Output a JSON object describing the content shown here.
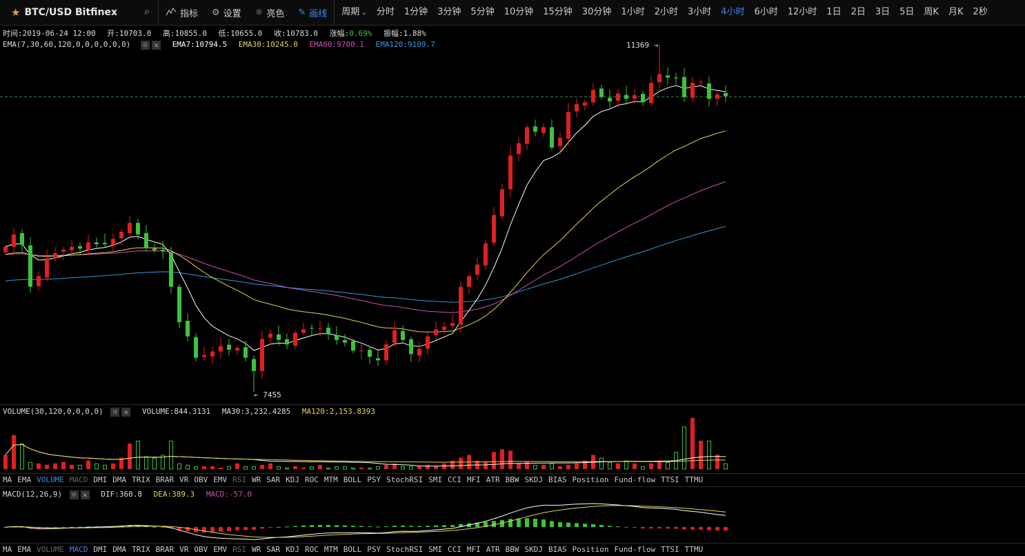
{
  "toolbar": {
    "symbol": "BTC/USD Bitfinex",
    "star_icon": "star-icon",
    "search_icon": "search-icon",
    "indicators": "指标",
    "settings": "设置",
    "brightness": "亮色",
    "draw": "画线",
    "period": "周期",
    "periods": [
      "分时",
      "1分钟",
      "3分钟",
      "5分钟",
      "10分钟",
      "15分钟",
      "30分钟",
      "1小时",
      "2小时",
      "3小时",
      "4小时",
      "6小时",
      "12小时",
      "1日",
      "2日",
      "3日",
      "5日",
      "周K",
      "月K",
      "2秒"
    ],
    "active_period": "4小时"
  },
  "ohlc": {
    "time_label": "时间:",
    "time": "2019-06-24 12:00",
    "open_label": "开:",
    "open": "10703.0",
    "high_label": "高:",
    "high": "10855.0",
    "low_label": "低:",
    "low": "10655.0",
    "close_label": "收:",
    "close": "10783.0",
    "change_label": "涨幅:",
    "change": "0.69%",
    "amp_label": "振幅:",
    "amp": "1.88%"
  },
  "ema_line": {
    "title": "EMA(7,30,60,120,0,0,0,0,0,0)",
    "ema7": "EMA7:10794.5",
    "ema30": "EMA30:10245.0",
    "ema60": "EMA60:9700.1",
    "ema120": "EMA120:9109.7"
  },
  "volume_line": {
    "title": "VOLUME(30,120,0,0,0,0)",
    "volume": "VOLUME:844.3131",
    "ma30": "MA30:3,232.4285",
    "ma120": "MA120:2,153.8393"
  },
  "macd_line": {
    "title": "MACD(12,26,9)",
    "dif": "DIF:360.8",
    "dea": "DEA:389.3",
    "macd": "MACD:-57.0"
  },
  "indicator_tabs": [
    "MA",
    "EMA",
    "VOLUME",
    "MACD",
    "DMI",
    "DMA",
    "TRIX",
    "BRAR",
    "VR",
    "OBV",
    "EMV",
    "RSI",
    "WR",
    "SAR",
    "KDJ",
    "ROC",
    "MTM",
    "BOLL",
    "PSY",
    "StochRSI",
    "SMI",
    "CCI",
    "MFI",
    "ATR",
    "BBW",
    "SKDJ",
    "BIAS",
    "Position",
    "Fund-flow",
    "TTSI",
    "TTMU"
  ],
  "tabs1_active": "VOLUME",
  "tabs2_active": "MACD",
  "dim_tabs": [
    "RSI"
  ],
  "colors": {
    "up": "#e02020",
    "down": "#3ec23e",
    "ema7": "#ffffff",
    "ema30": "#e8d44d",
    "ema60": "#d04fb4",
    "ema120": "#3399dd",
    "macd_dif": "#ffffff",
    "macd_dea": "#e8d44d",
    "accent": "#3b8df0"
  },
  "chart_data": {
    "type": "candlestick",
    "max_price": 11369,
    "min_price": 7455,
    "price_scale": [
      7455,
      11369
    ],
    "last_price_line": 10783,
    "max_label": "11369 →",
    "min_label": "← 7455",
    "closes": [
      9090,
      9230,
      9115,
      8640,
      8760,
      8960,
      9020,
      9060,
      9090,
      9070,
      9140,
      9120,
      9120,
      9180,
      9260,
      9360,
      9230,
      9080,
      9050,
      9040,
      8640,
      8240,
      8080,
      7840,
      7870,
      7910,
      7970,
      7930,
      7950,
      7840,
      7690,
      8050,
      8110,
      8040,
      7990,
      8120,
      8160,
      8170,
      8170,
      8110,
      8040,
      8010,
      7920,
      7920,
      7850,
      7810,
      7990,
      8150,
      8040,
      7880,
      7940,
      8080,
      8160,
      8190,
      8230,
      8640,
      8760,
      8890,
      9130,
      9450,
      9740,
      10120,
      10260,
      10440,
      10390,
      10440,
      10210,
      10320,
      10610,
      10700,
      10720,
      10860,
      10780,
      10730,
      10820,
      10760,
      10800,
      10720,
      10940,
      11040,
      11000,
      10990,
      10780,
      10940,
      10950,
      10760,
      10810,
      10790
    ],
    "volumes": [
      10,
      24,
      18,
      5,
      4,
      3,
      4,
      5,
      3,
      3,
      6,
      4,
      3,
      4,
      8,
      18,
      20,
      9,
      8,
      10,
      20,
      4,
      3,
      2,
      2,
      2,
      1,
      2,
      4,
      2,
      2,
      3,
      4,
      2,
      1,
      2,
      1,
      2,
      3,
      1,
      2,
      2,
      1,
      1,
      1,
      2,
      3,
      4,
      2,
      2,
      2,
      3,
      2,
      4,
      6,
      8,
      10,
      6,
      5,
      12,
      14,
      13,
      4,
      5,
      3,
      3,
      4,
      2,
      3,
      4,
      6,
      10,
      8,
      5,
      4,
      6,
      4,
      2,
      4,
      6,
      5,
      12,
      30,
      36,
      20,
      20,
      10,
      4
    ],
    "ema7_label": "EMA7",
    "ema30_label": "EMA30",
    "ema60_label": "EMA60",
    "ema120_label": "EMA120"
  }
}
